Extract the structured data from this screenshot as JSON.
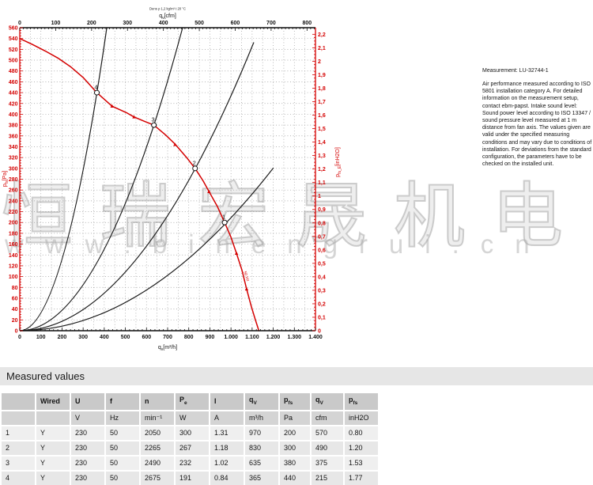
{
  "accent_color": "#d40000",
  "chart_data": {
    "type": "line",
    "title": "",
    "top_note": "Dens ρ 1,2 kg/m³ t 20 °C",
    "curve_label": "50 Hz",
    "axes": {
      "bottom": {
        "title_pre": "q",
        "title_sub": "v",
        "title_post": "[m³/h]",
        "min": 0,
        "max": 1400,
        "major_step": 100,
        "minor_step": 20,
        "labels": [
          "0",
          "100",
          "200",
          "300",
          "400",
          "500",
          "600",
          "700",
          "800",
          "900",
          "1.000",
          "1.100",
          "1.200",
          "1.300",
          "1.400"
        ]
      },
      "top": {
        "title_pre": "q",
        "title_sub": "v",
        "title_post": "[cfm]",
        "min": 0,
        "max": 800,
        "major_step": 100,
        "minor_step": 10,
        "m3h_per_cfm": 1.7,
        "labels": [
          "0",
          "100",
          "200",
          "300",
          "400",
          "500",
          "600",
          "700",
          "800"
        ]
      },
      "left": {
        "title_pre": "p",
        "title_sub": "fs",
        "title_post": "[Pa]",
        "min": 0,
        "max": 560,
        "major_step": 20,
        "minor_step": 5,
        "labels": [
          "0",
          "20",
          "40",
          "60",
          "80",
          "100",
          "120",
          "140",
          "160",
          "180",
          "200",
          "220",
          "240",
          "260",
          "280",
          "300",
          "320",
          "340",
          "360",
          "380",
          "400",
          "420",
          "440",
          "460",
          "480",
          "500",
          "520",
          "540",
          "560"
        ]
      },
      "right": {
        "title_pre": "p",
        "title_sub": "fs_E",
        "title_post": "[inH2O]",
        "min": 0,
        "max": 2.2,
        "major_step": 0.1,
        "minor_step": 0.025,
        "pa_per_unit": 249,
        "labels": [
          "0",
          "0,1",
          "0,2",
          "0,3",
          "0,4",
          "0,5",
          "0,6",
          "0,7",
          "0,8",
          "0,9",
          "1",
          "1,1",
          "1,2",
          "1,3",
          "1,4",
          "1,5",
          "1,6",
          "1,7",
          "1,8",
          "1,9",
          "2",
          "2,1",
          "2,2"
        ]
      }
    },
    "grid": {
      "x_step": 50,
      "y_step": 20
    },
    "fan_curve": {
      "name": "air performance curve 50 Hz",
      "color": "#d40000",
      "points": [
        [
          0,
          540
        ],
        [
          60,
          529
        ],
        [
          120,
          517
        ],
        [
          180,
          504
        ],
        [
          240,
          488
        ],
        [
          300,
          468
        ],
        [
          365,
          440
        ],
        [
          437,
          415
        ],
        [
          505,
          403
        ],
        [
          541,
          395
        ],
        [
          590,
          387
        ],
        [
          635,
          380
        ],
        [
          690,
          362
        ],
        [
          735,
          345
        ],
        [
          790,
          320
        ],
        [
          830,
          300
        ],
        [
          868,
          277
        ],
        [
          896,
          257
        ],
        [
          935,
          230
        ],
        [
          970,
          200
        ],
        [
          1000,
          173
        ],
        [
          1026,
          143
        ],
        [
          1052,
          112
        ],
        [
          1074,
          77
        ],
        [
          1096,
          45
        ],
        [
          1114,
          22
        ],
        [
          1132,
          0
        ]
      ]
    },
    "fan_curve_markers": [
      [
        437,
        415
      ],
      [
        541,
        395
      ],
      [
        735,
        344
      ],
      [
        896,
        257
      ],
      [
        1026,
        143
      ],
      [
        1074,
        77
      ]
    ],
    "system_curves": [
      {
        "name": "system curve through point 4",
        "through": [
          365,
          440
        ],
        "end": [
          412,
          560
        ]
      },
      {
        "name": "system curve through point 3",
        "through": [
          635,
          380
        ],
        "end": [
          771,
          560
        ]
      },
      {
        "name": "system curve through point 2",
        "through": [
          830,
          300
        ],
        "end": [
          1108,
          533
        ]
      },
      {
        "name": "system curve through point 1",
        "through": [
          970,
          200
        ],
        "end": [
          1201,
          301
        ]
      }
    ],
    "operating_points": [
      {
        "label": "1",
        "qv": 970,
        "pfs": 200
      },
      {
        "label": "2",
        "qv": 830,
        "pfs": 300
      },
      {
        "label": "3",
        "qv": 635,
        "pfs": 380
      },
      {
        "label": "4",
        "qv": 365,
        "pfs": 440
      }
    ]
  },
  "measurement": {
    "title": "Measurement: LU-32744-1",
    "body": "Air performance measured according to ISO 5801 installation category A. For detailed information on the measurement setup, contact ebm-papst. Intake sound level: Sound power level according to ISO 13347 / sound pressure level measured at 1 m distance from fan axis. The values given are valid under the specified measuring conditions and may vary due to conditions of installation. For deviations from the standard configuration, the parameters have to be checked on the installed unit."
  },
  "watermark": {
    "cjk": "恒瑞宏晟机电",
    "url": "www.binengrui.cn"
  },
  "table": {
    "section_title": "Measured values",
    "headers": [
      {
        "main": "",
        "sub": ""
      },
      {
        "main": "Wired",
        "sub": ""
      },
      {
        "main": "U",
        "sub": ""
      },
      {
        "main": "f",
        "sub": ""
      },
      {
        "main": "n",
        "sub": ""
      },
      {
        "main": "P",
        "sub": "e"
      },
      {
        "main": "I",
        "sub": ""
      },
      {
        "main": "q",
        "sub": "V"
      },
      {
        "main": "p",
        "sub": "fs"
      },
      {
        "main": "q",
        "sub": "V"
      },
      {
        "main": "p",
        "sub": "fs"
      }
    ],
    "units": [
      "",
      "",
      "V",
      "Hz",
      "min⁻¹",
      "W",
      "A",
      "m³/h",
      "Pa",
      "cfm",
      "inH2O"
    ],
    "rows": [
      [
        "1",
        "Y",
        "230",
        "50",
        "2050",
        "300",
        "1.31",
        "970",
        "200",
        "570",
        "0.80"
      ],
      [
        "2",
        "Y",
        "230",
        "50",
        "2265",
        "267",
        "1.18",
        "830",
        "300",
        "490",
        "1.20"
      ],
      [
        "3",
        "Y",
        "230",
        "50",
        "2490",
        "232",
        "1.02",
        "635",
        "380",
        "375",
        "1.53"
      ],
      [
        "4",
        "Y",
        "230",
        "50",
        "2675",
        "191",
        "0.84",
        "365",
        "440",
        "215",
        "1.77"
      ]
    ]
  }
}
